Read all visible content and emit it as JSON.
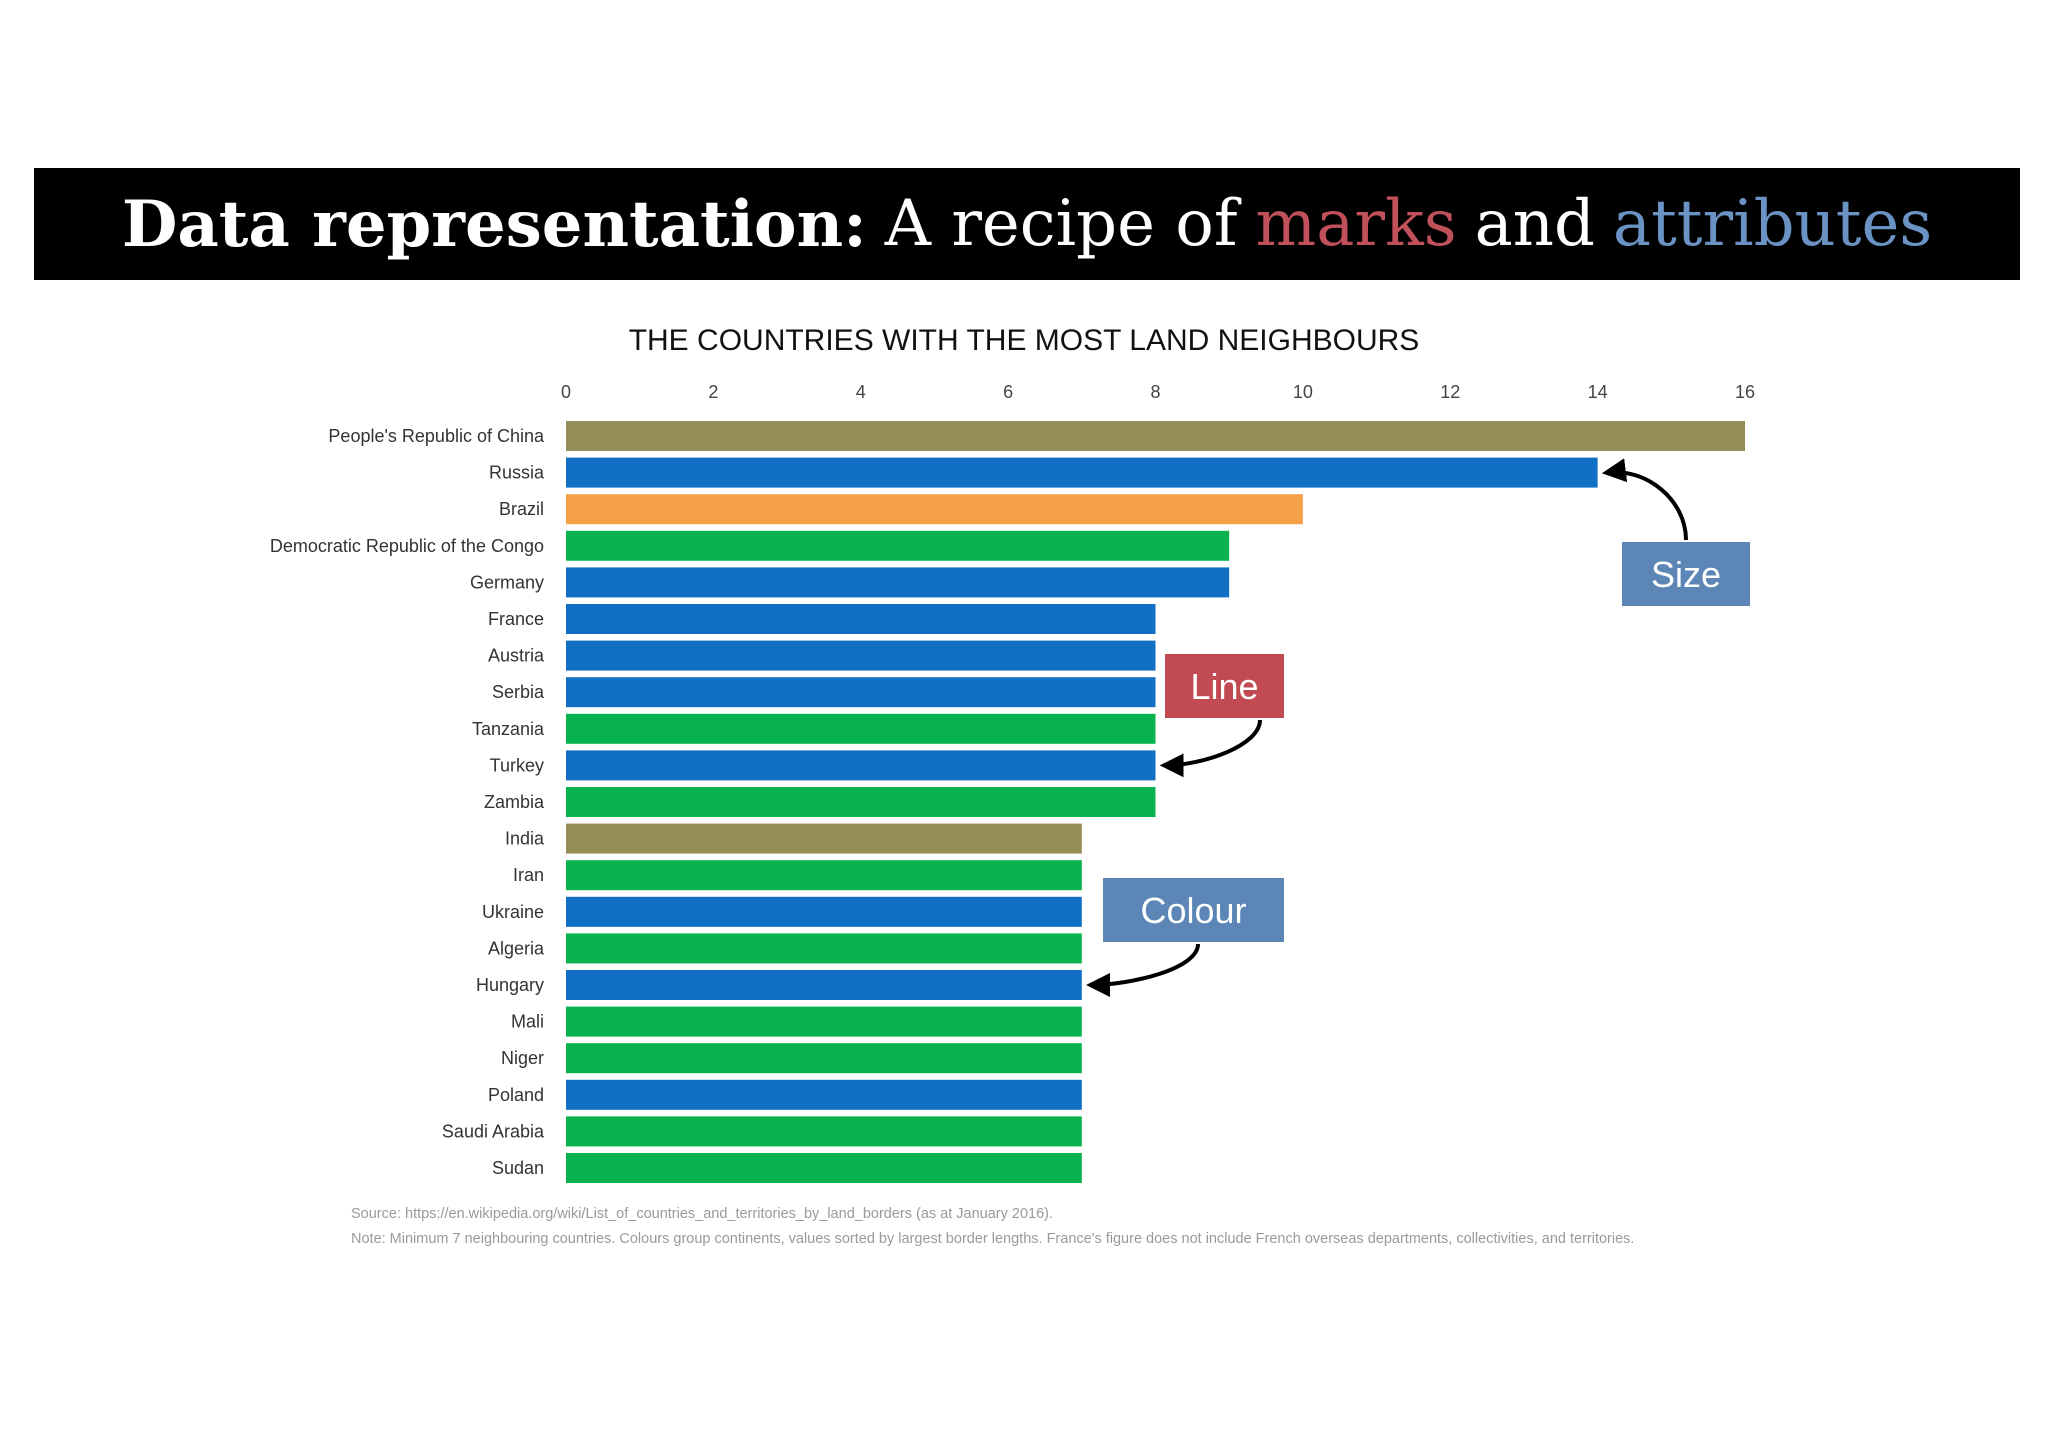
{
  "banner": {
    "bold_part": "Data representation:",
    "plain_part": "A recipe of",
    "marks_word": "marks",
    "and_word": "and",
    "attributes_word": "attributes",
    "colors": {
      "marks": "#c0505a",
      "attributes": "#6a93c4"
    }
  },
  "chart_data": {
    "type": "bar",
    "orientation": "horizontal",
    "title": "THE COUNTRIES WITH THE MOST LAND NEIGHBOURS",
    "xlim": [
      0,
      16
    ],
    "x_ticks": [
      0,
      2,
      4,
      6,
      8,
      10,
      12,
      14,
      16
    ],
    "axis_position": "top",
    "grid": false,
    "categories": [
      "People's Republic of China",
      "Russia",
      "Brazil",
      "Democratic Republic of the Congo",
      "Germany",
      "France",
      "Austria",
      "Serbia",
      "Tanzania",
      "Turkey",
      "Zambia",
      "India",
      "Iran",
      "Ukraine",
      "Algeria",
      "Hungary",
      "Mali",
      "Niger",
      "Poland",
      "Saudi Arabia",
      "Sudan"
    ],
    "values": [
      16,
      14,
      10,
      9,
      9,
      8,
      8,
      8,
      8,
      8,
      8,
      7,
      7,
      7,
      7,
      7,
      7,
      7,
      7,
      7,
      7
    ],
    "bar_colors": [
      "#968c55",
      "#1270c4",
      "#f5a046",
      "#08b34e",
      "#1270c4",
      "#1270c4",
      "#1270c4",
      "#1270c4",
      "#08b34e",
      "#1270c4",
      "#08b34e",
      "#968c55",
      "#08b34e",
      "#1270c4",
      "#08b34e",
      "#1270c4",
      "#08b34e",
      "#08b34e",
      "#1270c4",
      "#08b34e",
      "#08b34e"
    ],
    "annotations": [
      {
        "text": "Size",
        "color": "#5b86b5",
        "points_to": "Russia"
      },
      {
        "text": "Line",
        "color": "#c24a52",
        "points_to": "Turkey"
      },
      {
        "text": "Colour",
        "color": "#5b86b5",
        "points_to": "Hungary"
      }
    ],
    "source": "Source: https://en.wikipedia.org/wiki/List_of_countries_and_territories_by_land_borders  (as at January 2016).",
    "note": "Note: Minimum 7 neighbouring  countries. Colours group continents, values sorted by largest border lengths.  France's figure does not include French overseas departments, collectivities, and territories."
  }
}
